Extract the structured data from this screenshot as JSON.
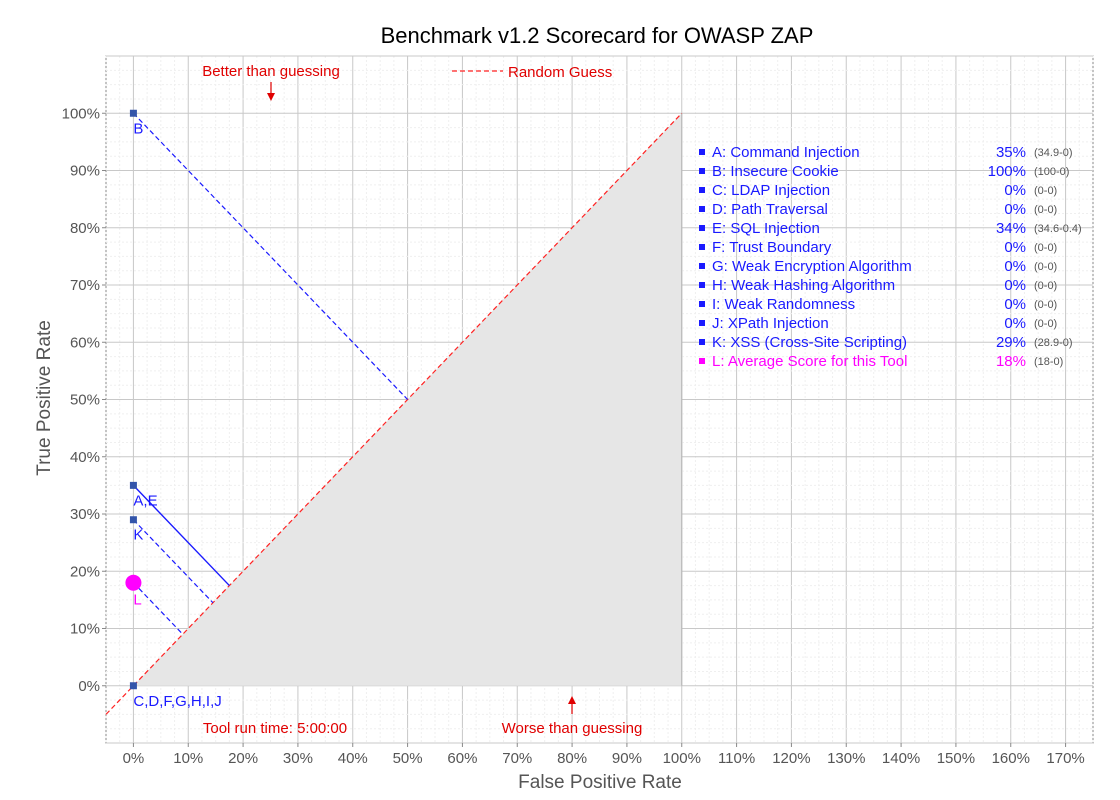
{
  "chart_data": {
    "type": "scatter",
    "title": "Benchmark v1.2 Scorecard for OWASP ZAP",
    "xlabel": "False Positive Rate",
    "ylabel": "True Positive Rate",
    "xlim": [
      -5,
      175
    ],
    "ylim": [
      -10,
      110
    ],
    "x_ticks": [
      "0%",
      "10%",
      "20%",
      "30%",
      "40%",
      "50%",
      "60%",
      "70%",
      "80%",
      "90%",
      "100%",
      "110%",
      "120%",
      "130%",
      "140%",
      "150%",
      "160%",
      "170%"
    ],
    "y_ticks": [
      "0%",
      "10%",
      "20%",
      "30%",
      "40%",
      "50%",
      "60%",
      "70%",
      "80%",
      "90%",
      "100%"
    ],
    "grid": true,
    "annotations": {
      "better": "Better than guessing",
      "worse": "Worse than guessing",
      "random_guess": "Random Guess",
      "run_time": "Tool run time: 5:00:00"
    },
    "points": [
      {
        "label": "B",
        "fpr": 0,
        "tpr": 100
      },
      {
        "label": "A,E",
        "fpr": 0,
        "tpr": 35
      },
      {
        "label": "K",
        "fpr": 0,
        "tpr": 29
      },
      {
        "label": "L",
        "fpr": 0,
        "tpr": 18,
        "average": true
      },
      {
        "label": "C,D,F,G,H,I,J",
        "fpr": 0,
        "tpr": 0
      }
    ],
    "legend": [
      {
        "text": "A: Command Injection",
        "score": "35%",
        "detail": "(34.9-0)",
        "color": "#1a1aff"
      },
      {
        "text": "B: Insecure Cookie",
        "score": "100%",
        "detail": "(100-0)",
        "color": "#1a1aff"
      },
      {
        "text": "C: LDAP Injection",
        "score": "0%",
        "detail": "(0-0)",
        "color": "#1a1aff"
      },
      {
        "text": "D: Path Traversal",
        "score": "0%",
        "detail": "(0-0)",
        "color": "#1a1aff"
      },
      {
        "text": "E: SQL Injection",
        "score": "34%",
        "detail": "(34.6-0.4)",
        "color": "#1a1aff"
      },
      {
        "text": "F: Trust Boundary",
        "score": "0%",
        "detail": "(0-0)",
        "color": "#1a1aff"
      },
      {
        "text": "G: Weak Encryption Algorithm",
        "score": "0%",
        "detail": "(0-0)",
        "color": "#1a1aff"
      },
      {
        "text": "H: Weak Hashing Algorithm",
        "score": "0%",
        "detail": "(0-0)",
        "color": "#1a1aff"
      },
      {
        "text": "I:  Weak Randomness",
        "score": "0%",
        "detail": "(0-0)",
        "color": "#1a1aff"
      },
      {
        "text": "J:  XPath Injection",
        "score": "0%",
        "detail": "(0-0)",
        "color": "#1a1aff"
      },
      {
        "text": "K: XSS (Cross-Site Scripting)",
        "score": "29%",
        "detail": "(28.9-0)",
        "color": "#1a1aff"
      },
      {
        "text": "L: Average Score for this Tool",
        "score": "18%",
        "detail": "(18-0)",
        "color": "#ff00ff"
      }
    ],
    "colors": {
      "point": "#3355aa",
      "series_line": "#1a1aff",
      "average": "#ff00ff",
      "guess_line": "#ff2222",
      "worse_region": "#e6e6e6",
      "annotation": "#e00000"
    }
  }
}
